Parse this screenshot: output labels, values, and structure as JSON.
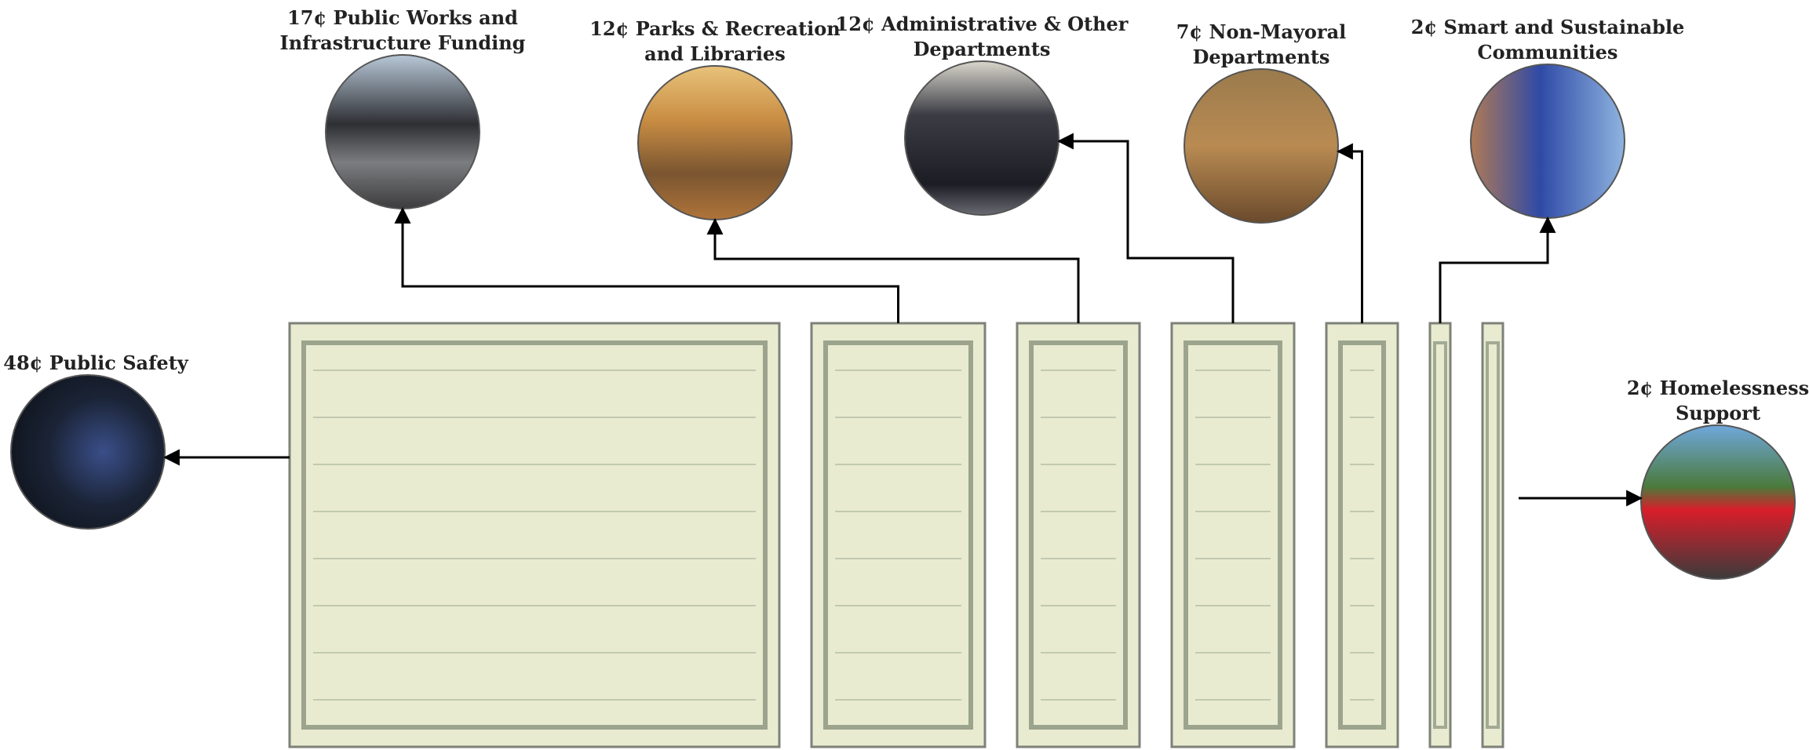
{
  "segments": [
    {
      "value": 48,
      "value_label": "48¢",
      "name": [
        "Public Safety"
      ]
    },
    {
      "value": 17,
      "value_label": "17¢",
      "name": [
        "Public Works  and",
        "Infrastructure Funding"
      ]
    },
    {
      "value": 12,
      "value_label": "12¢",
      "name": [
        "Parks & Recreation",
        "and Libraries"
      ]
    },
    {
      "value": 12,
      "value_label": "12¢",
      "name": [
        "Administrative & Other",
        "Departments"
      ]
    },
    {
      "value": 7,
      "value_label": "7¢",
      "name": [
        "Non-Mayoral",
        "Departments"
      ]
    },
    {
      "value": 2,
      "value_label": "2¢",
      "name": [
        "Smart and Sustainable",
        "Communities"
      ]
    },
    {
      "value": 2,
      "value_label": "2¢",
      "name": [
        "Homelessness",
        "Support"
      ]
    }
  ]
}
